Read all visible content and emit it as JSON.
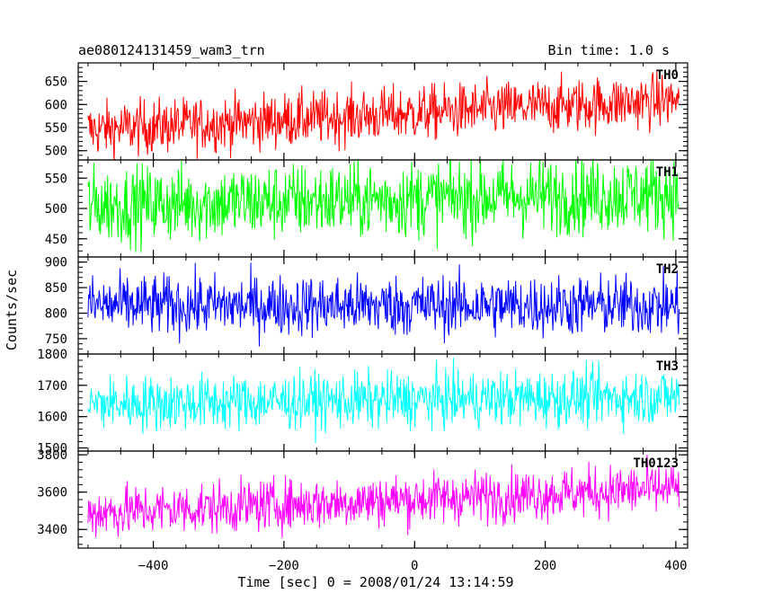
{
  "header": {
    "title": "ae080124131459_wam3_trn",
    "bin_time": "Bin time: 1.0 s"
  },
  "chart_data": {
    "type": "line",
    "ylabel": "Counts/sec",
    "xlabel": "Time [sec] 0 = 2008/01/24 13:14:59",
    "xlim": [
      -515,
      418
    ],
    "data_x_range": [
      -500,
      405
    ],
    "x_ticks": [
      -400,
      -200,
      0,
      200,
      400
    ],
    "x_tick_labels": [
      "−400",
      "−200",
      "0",
      "200",
      "400"
    ],
    "panels": [
      {
        "label": "TH0",
        "color": "#ff0000",
        "ylim": [
          480,
          690
        ],
        "y_ticks": [
          500,
          550,
          600,
          650
        ],
        "trend": [
          545,
          610
        ],
        "noise": 30
      },
      {
        "label": "TH1",
        "color": "#00ff00",
        "ylim": [
          420,
          580
        ],
        "y_ticks": [
          450,
          500,
          550
        ],
        "trend": [
          505,
          525
        ],
        "noise": 32
      },
      {
        "label": "TH2",
        "color": "#0000ff",
        "ylim": [
          720,
          910
        ],
        "y_ticks": [
          750,
          800,
          850,
          900
        ],
        "trend": [
          815,
          815
        ],
        "noise": 30
      },
      {
        "label": "TH3",
        "color": "#00ffff",
        "ylim": [
          1490,
          1800
        ],
        "y_ticks": [
          1500,
          1600,
          1700,
          1800
        ],
        "trend": [
          1640,
          1665
        ],
        "noise": 45
      },
      {
        "label": "TH0123",
        "color": "#ff00ff",
        "ylim": [
          3300,
          3820
        ],
        "y_ticks": [
          3400,
          3600,
          3800
        ],
        "trend": [
          3490,
          3620
        ],
        "noise": 70
      }
    ]
  }
}
